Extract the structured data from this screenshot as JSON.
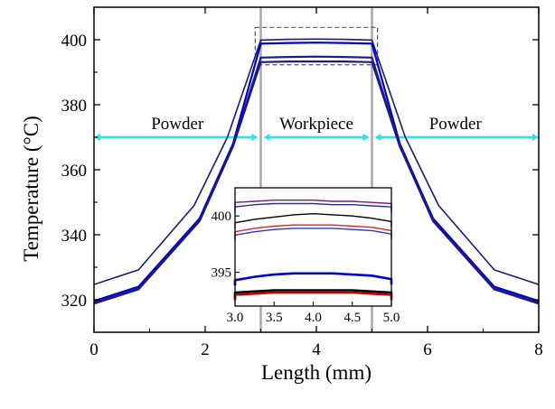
{
  "chart_data": {
    "type": "line",
    "xlabel": "Length (mm)",
    "ylabel": "Temperature (°C)",
    "xlim": [
      0,
      8
    ],
    "ylim": [
      310,
      410
    ],
    "xticks": [
      0,
      2,
      4,
      6,
      8
    ],
    "yticks": [
      320,
      340,
      360,
      380,
      400
    ],
    "xtick_labels": [
      "0",
      "2",
      "4",
      "6",
      "8"
    ],
    "ytick_labels": [
      "320",
      "340",
      "360",
      "380",
      "400"
    ],
    "grid": false,
    "legend": "none",
    "regions": [
      {
        "label": "Powder",
        "x": [
          0,
          3
        ]
      },
      {
        "label": "Workpiece",
        "x": [
          3,
          5
        ]
      },
      {
        "label": "Powder",
        "x": [
          5,
          8
        ]
      }
    ],
    "region_arrow_y": 370,
    "region_color": "#33e0e0",
    "boundaries": [
      3,
      5
    ],
    "zoom_box": {
      "x": [
        2.9,
        5.1
      ],
      "y": [
        392.3,
        403.8
      ]
    },
    "series": [
      {
        "color": "#1a1a7a",
        "x": [
          0,
          0.8,
          1.8,
          2.4,
          3.0,
          3.5,
          4.0,
          4.5,
          5.0,
          5.6,
          6.2,
          7.2,
          8.0
        ],
        "values": [
          324.7,
          329.2,
          349,
          370,
          399.9,
          400.1,
          400.2,
          400.1,
          399.9,
          370,
          349,
          329.2,
          324.7
        ]
      },
      {
        "color": "#0000cc",
        "x": [
          0,
          0.8,
          1.9,
          2.5,
          3.0,
          3.5,
          4.0,
          4.5,
          5.0,
          5.5,
          6.1,
          7.2,
          8.0
        ],
        "values": [
          319.6,
          324,
          345,
          368,
          398.8,
          399.0,
          399.1,
          399.0,
          398.8,
          368,
          345,
          324,
          319.6
        ]
      },
      {
        "color": "#1a1aa0",
        "x": [
          0,
          0.8,
          1.9,
          2.5,
          3.0,
          3.5,
          4.0,
          4.5,
          5.0,
          5.5,
          6.1,
          7.2,
          8.0
        ],
        "values": [
          319.0,
          323.4,
          344.4,
          367.4,
          394.5,
          394.7,
          394.8,
          394.7,
          394.5,
          367.4,
          344.4,
          323.4,
          319.0
        ]
      },
      {
        "color": "#1a1a80",
        "x": [
          0,
          0.8,
          1.9,
          2.5,
          3.0,
          3.5,
          4.0,
          4.5,
          5.0,
          5.5,
          6.1,
          7.2,
          8.0
        ],
        "values": [
          318.8,
          323.2,
          344.2,
          367.2,
          393.1,
          393.3,
          393.3,
          393.3,
          393.1,
          367.2,
          344.2,
          323.2,
          318.8
        ]
      }
    ],
    "inset": {
      "xlim": [
        3.0,
        5.0
      ],
      "ylim": [
        392,
        402.5
      ],
      "xticks": [
        3.0,
        3.5,
        4.0,
        4.5,
        5.0
      ],
      "xtick_labels": [
        "3.0",
        "3.5",
        "4.0",
        "4.5",
        "5.0"
      ],
      "yticks": [
        395,
        400
      ],
      "ytick_labels": [
        "395",
        "400"
      ],
      "series": [
        {
          "color": "#7a1a7a",
          "values": [
            401.2,
            401.3,
            401.4,
            401.4,
            401.4,
            401.3,
            401.3,
            401.2,
            401.1
          ]
        },
        {
          "color": "#2a2aa8",
          "values": [
            400.8,
            401.0,
            401.1,
            401.1,
            401.1,
            401.0,
            401.0,
            400.9,
            400.8
          ]
        },
        {
          "color": "#000000",
          "values": [
            399.4,
            399.7,
            399.9,
            400.1,
            400.2,
            400.1,
            400.0,
            399.8,
            399.5
          ]
        },
        {
          "color": "#dd2222",
          "values": [
            398.6,
            398.9,
            399.1,
            399.2,
            399.2,
            399.2,
            399.1,
            399.0,
            398.7
          ]
        },
        {
          "color": "#3333cc",
          "values": [
            398.3,
            398.6,
            398.8,
            398.9,
            398.9,
            398.9,
            398.8,
            398.7,
            398.4
          ]
        },
        {
          "color": "#0000cc",
          "values": [
            394.3,
            394.6,
            394.8,
            394.9,
            394.9,
            394.9,
            394.8,
            394.7,
            394.4
          ]
        },
        {
          "color": "#000000",
          "values": [
            393.2,
            393.3,
            393.4,
            393.4,
            393.4,
            393.4,
            393.4,
            393.3,
            393.2
          ]
        },
        {
          "color": "#cc0000",
          "values": [
            393.0,
            393.1,
            393.2,
            393.2,
            393.2,
            393.2,
            393.2,
            393.1,
            393.0
          ]
        }
      ]
    }
  }
}
